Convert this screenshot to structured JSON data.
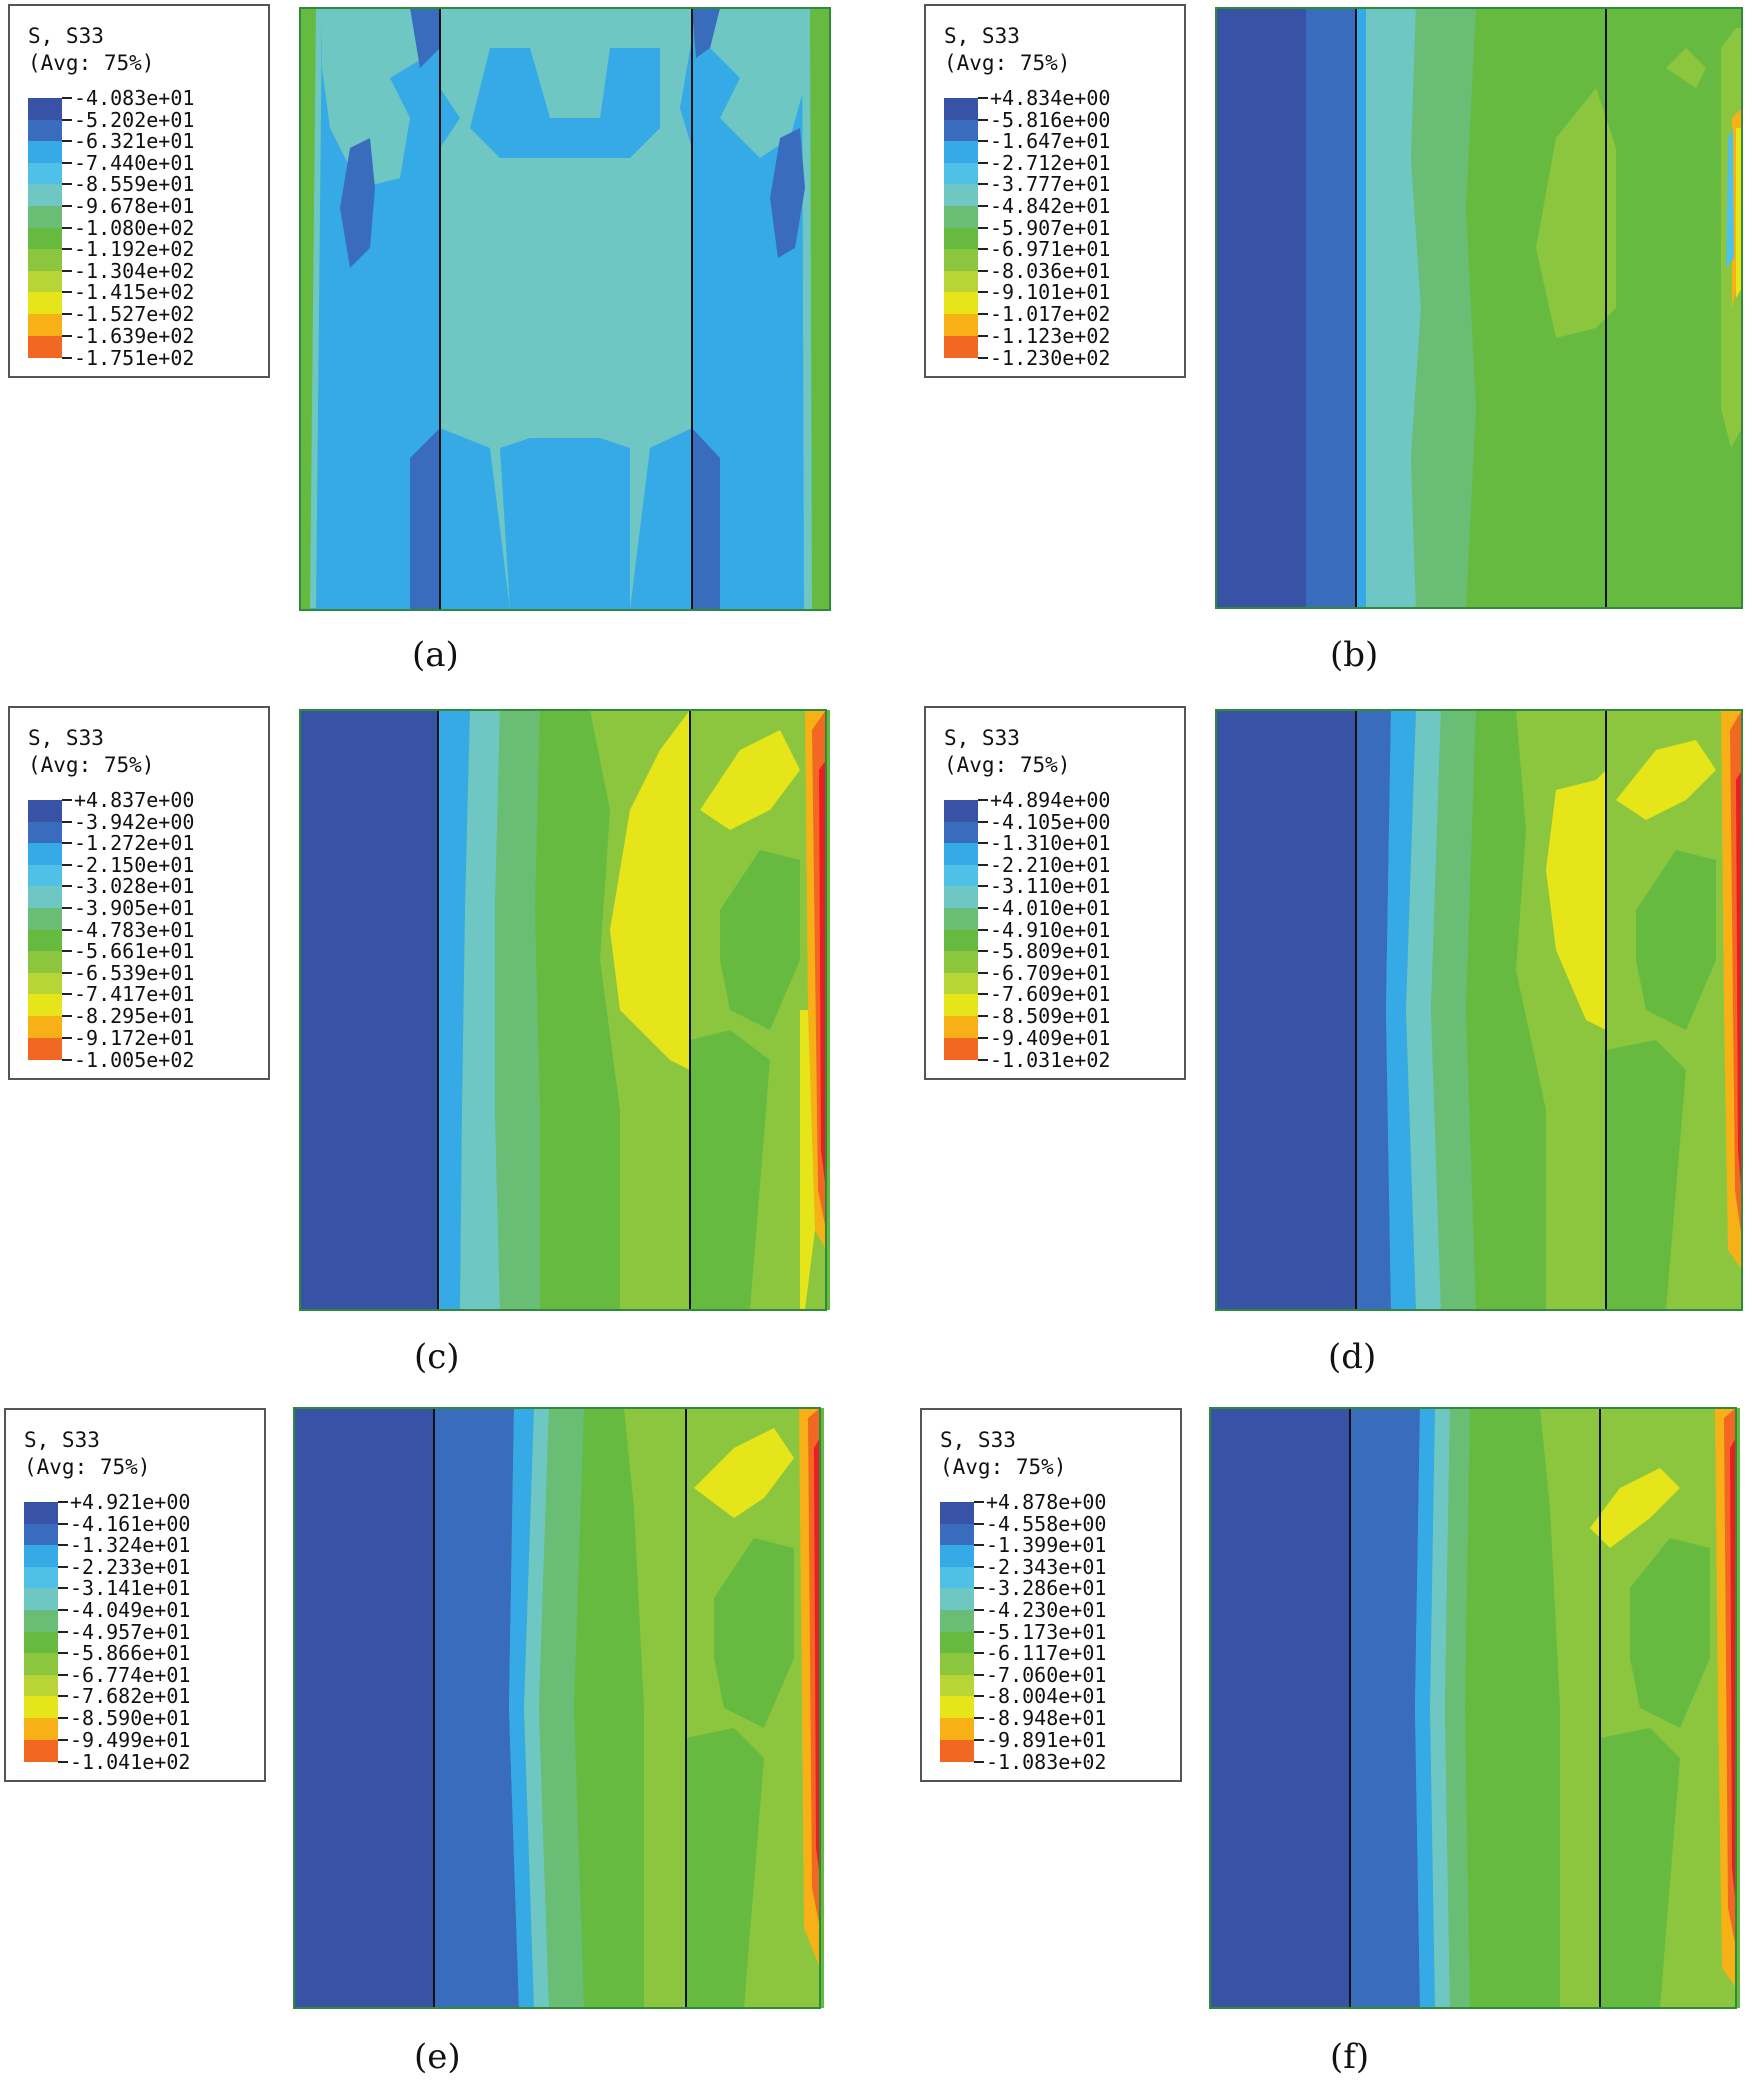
{
  "colors": {
    "levels": [
      "#3853a6",
      "#3a6cbd",
      "#35aae6",
      "#4fc0e6",
      "#6ec7c3",
      "#69bd74",
      "#66ba40",
      "#8cc63f",
      "#b8d436",
      "#e5e51a",
      "#f7b117",
      "#f26722",
      "#ed1c24"
    ]
  },
  "panels": [
    {
      "id": "a",
      "caption": "(a)",
      "legend": {
        "title": "S, S33",
        "subtitle": "(Avg: 75%)",
        "values": [
          "-4.083e+01",
          "-5.202e+01",
          "-6.321e+01",
          "-7.440e+01",
          "-8.559e+01",
          "-9.678e+01",
          "-1.080e+02",
          "-1.192e+02",
          "-1.304e+02",
          "-1.415e+02",
          "-1.527e+02",
          "-1.639e+02",
          "-1.751e+02"
        ]
      }
    },
    {
      "id": "b",
      "caption": "(b)",
      "legend": {
        "title": "S, S33",
        "subtitle": "(Avg: 75%)",
        "values": [
          "+4.834e+00",
          "-5.816e+00",
          "-1.647e+01",
          "-2.712e+01",
          "-3.777e+01",
          "-4.842e+01",
          "-5.907e+01",
          "-6.971e+01",
          "-8.036e+01",
          "-9.101e+01",
          "-1.017e+02",
          "-1.123e+02",
          "-1.230e+02"
        ]
      }
    },
    {
      "id": "c",
      "caption": "(c)",
      "legend": {
        "title": "S, S33",
        "subtitle": "(Avg: 75%)",
        "values": [
          "+4.837e+00",
          "-3.942e+00",
          "-1.272e+01",
          "-2.150e+01",
          "-3.028e+01",
          "-3.905e+01",
          "-4.783e+01",
          "-5.661e+01",
          "-6.539e+01",
          "-7.417e+01",
          "-8.295e+01",
          "-9.172e+01",
          "-1.005e+02"
        ]
      }
    },
    {
      "id": "d",
      "caption": "(d)",
      "legend": {
        "title": "S, S33",
        "subtitle": "(Avg: 75%)",
        "values": [
          "+4.894e+00",
          "-4.105e+00",
          "-1.310e+01",
          "-2.210e+01",
          "-3.110e+01",
          "-4.010e+01",
          "-4.910e+01",
          "-5.809e+01",
          "-6.709e+01",
          "-7.609e+01",
          "-8.509e+01",
          "-9.409e+01",
          "-1.031e+02"
        ]
      }
    },
    {
      "id": "e",
      "caption": "(e)",
      "legend": {
        "title": "S, S33",
        "subtitle": "(Avg: 75%)",
        "values": [
          "+4.921e+00",
          "-4.161e+00",
          "-1.324e+01",
          "-2.233e+01",
          "-3.141e+01",
          "-4.049e+01",
          "-4.957e+01",
          "-5.866e+01",
          "-6.774e+01",
          "-7.682e+01",
          "-8.590e+01",
          "-9.499e+01",
          "-1.041e+02"
        ]
      }
    },
    {
      "id": "f",
      "caption": "(f)",
      "legend": {
        "title": "S, S33",
        "subtitle": "(Avg: 75%)",
        "values": [
          "+4.878e+00",
          "-4.558e+00",
          "-1.399e+01",
          "-2.343e+01",
          "-3.286e+01",
          "-4.230e+01",
          "-5.173e+01",
          "-6.117e+01",
          "-7.060e+01",
          "-8.004e+01",
          "-8.948e+01",
          "-9.891e+01",
          "-1.083e+02"
        ]
      }
    }
  ]
}
